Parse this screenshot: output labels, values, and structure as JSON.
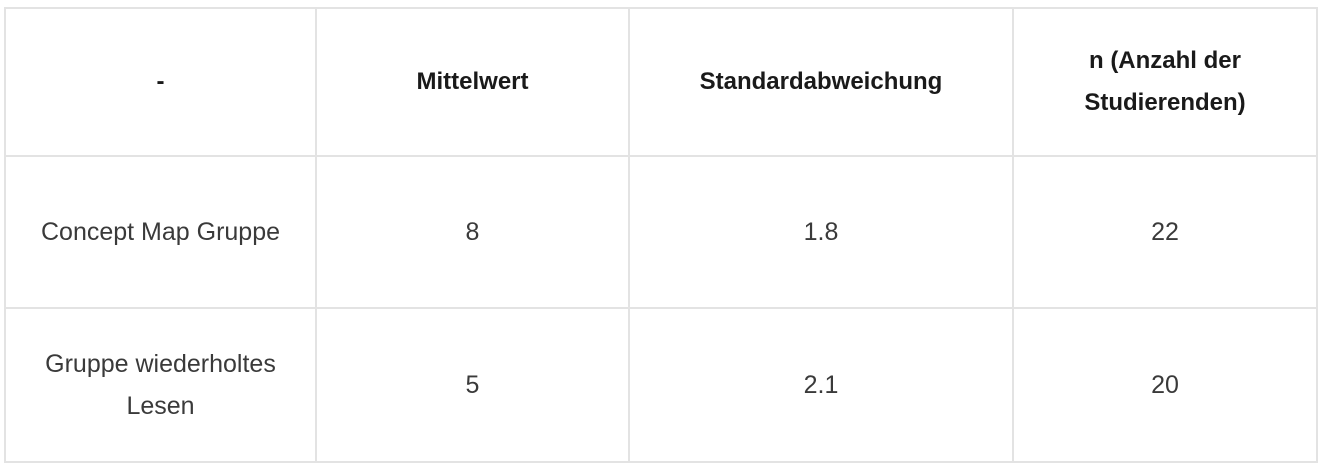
{
  "table": {
    "headers": [
      "-",
      "Mittelwert",
      "Standardabweichung",
      "n (Anzahl der Studierenden)"
    ],
    "rows": [
      [
        "Concept Map Gruppe",
        "8",
        "1.8",
        "22"
      ],
      [
        "Gruppe wiederholtes Lesen",
        "5",
        "2.1",
        "20"
      ]
    ]
  }
}
